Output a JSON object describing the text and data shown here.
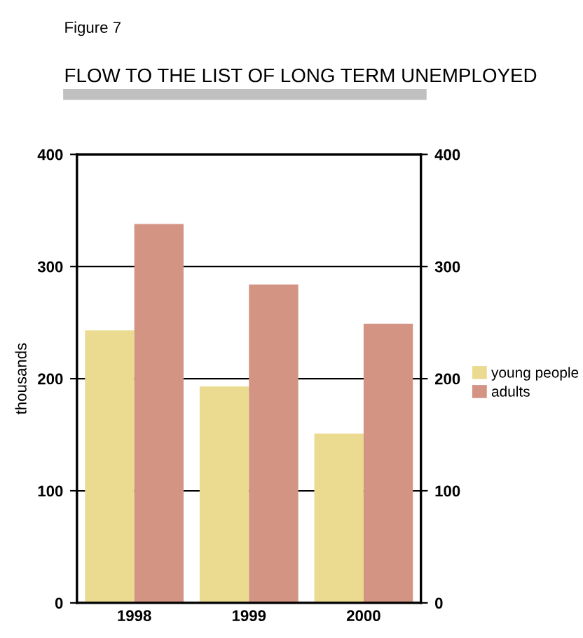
{
  "chart_data": {
    "type": "bar",
    "title": "FLOW TO THE LIST OF LONG TERM UNEMPLOYED",
    "annotations": [
      "Figure 7"
    ],
    "ylabel": "thousands",
    "categories": [
      "1998",
      "1999",
      "2000"
    ],
    "series": [
      {
        "name": "young people",
        "color": "#ebdb91",
        "values": [
          243,
          193,
          151
        ]
      },
      {
        "name": "adults",
        "color": "#d49484",
        "values": [
          338,
          284,
          249
        ]
      }
    ],
    "ylim": [
      0,
      400
    ],
    "yticks": [
      0,
      100,
      200,
      300,
      400
    ],
    "y2lim": [
      0,
      400
    ],
    "y2ticks": [
      0,
      100,
      200,
      300,
      400
    ],
    "grid": "y",
    "legend": "right"
  }
}
